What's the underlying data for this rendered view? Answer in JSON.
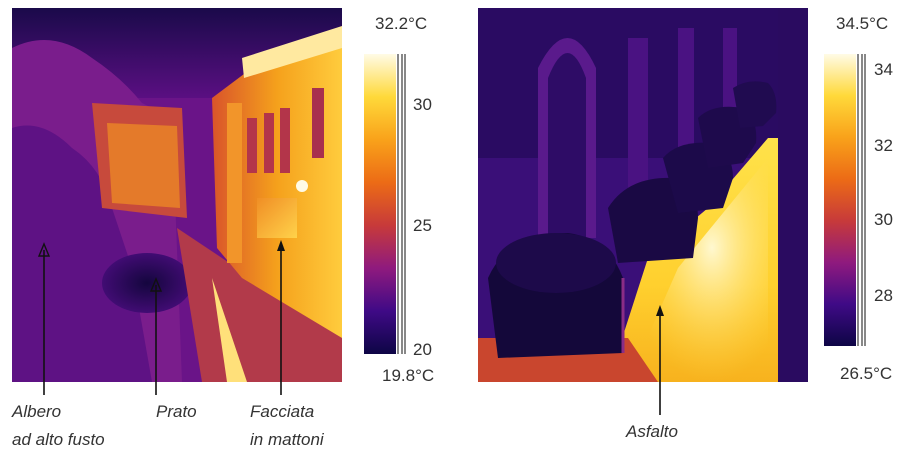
{
  "left_panel": {
    "scale": {
      "max_label": "32.2°C",
      "min_label": "19.8°C",
      "ticks": [
        "30",
        "25",
        "20"
      ],
      "colors": [
        "#fffbe6",
        "#ffd93a",
        "#f9a21a",
        "#ec6b16",
        "#c73a3a",
        "#8f1a7e",
        "#3f0a86",
        "#0d0545"
      ]
    },
    "annotations": [
      {
        "lines": [
          "Albero",
          "ad alto fusto"
        ]
      },
      {
        "lines": [
          "Prato"
        ]
      },
      {
        "lines": [
          "Facciata",
          "in mattoni"
        ]
      }
    ]
  },
  "right_panel": {
    "scale": {
      "max_label": "34.5°C",
      "min_label": "26.5°C",
      "ticks": [
        "34",
        "32",
        "30",
        "28"
      ],
      "colors": [
        "#fffbe6",
        "#ffd93a",
        "#f9a21a",
        "#ec6b16",
        "#c73a3a",
        "#8f1a7e",
        "#3f0a86",
        "#0d0545"
      ]
    },
    "annotations": [
      {
        "lines": [
          "Asfalto"
        ]
      }
    ]
  }
}
